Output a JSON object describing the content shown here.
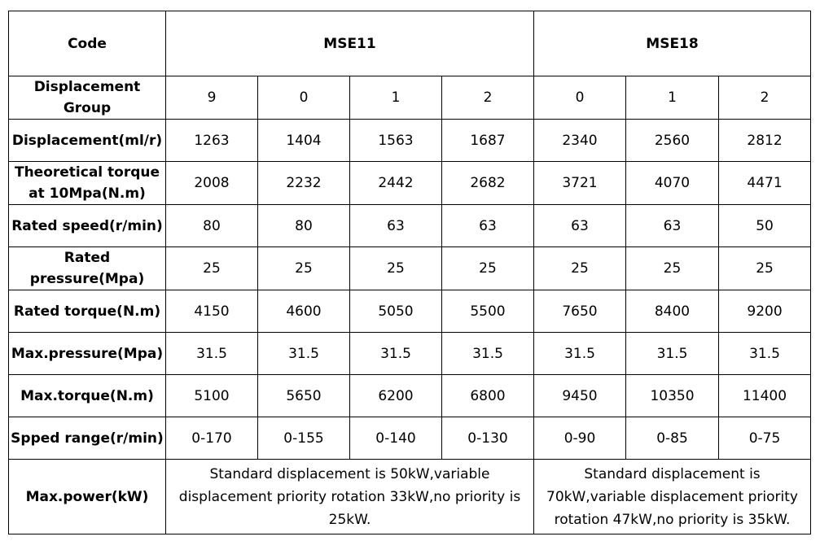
{
  "table": {
    "header": {
      "code_label": "Code",
      "series": [
        "MSE11",
        "MSE18"
      ]
    },
    "rows": [
      {
        "label": "Displacement Group",
        "values": [
          "9",
          "0",
          "1",
          "2",
          "0",
          "1",
          "2"
        ]
      },
      {
        "label": "Displacement(ml/r)",
        "values": [
          "1263",
          "1404",
          "1563",
          "1687",
          "2340",
          "2560",
          "2812"
        ]
      },
      {
        "label": "Theoretical torque at 10Mpa(N.m)",
        "values": [
          "2008",
          "2232",
          "2442",
          "2682",
          "3721",
          "4070",
          "4471"
        ]
      },
      {
        "label": "Rated speed(r/min)",
        "values": [
          "80",
          "80",
          "63",
          "63",
          "63",
          "63",
          "50"
        ]
      },
      {
        "label": "Rated pressure(Mpa)",
        "values": [
          "25",
          "25",
          "25",
          "25",
          "25",
          "25",
          "25"
        ]
      },
      {
        "label": "Rated torque(N.m)",
        "values": [
          "4150",
          "4600",
          "5050",
          "5500",
          "7650",
          "8400",
          "9200"
        ]
      },
      {
        "label": "Max.pressure(Mpa)",
        "values": [
          "31.5",
          "31.5",
          "31.5",
          "31.5",
          "31.5",
          "31.5",
          "31.5"
        ]
      },
      {
        "label": "Max.torque(N.m)",
        "values": [
          "5100",
          "5650",
          "6200",
          "6800",
          "9450",
          "10350",
          "11400"
        ]
      },
      {
        "label": "Spped range(r/min)",
        "values": [
          "0-170",
          "0-155",
          "0-140",
          "0-130",
          "0-90",
          "0-85",
          "0-75"
        ]
      }
    ],
    "power_row": {
      "label": "Max.power(kW)",
      "mse11": "Standard displacement is 50kW,variable displacement priority rotation 33kW,no priority is 25kW.",
      "mse18": "Standard displacement is 70kW,variable displacement priority rotation 47kW,no priority is 35kW."
    }
  }
}
